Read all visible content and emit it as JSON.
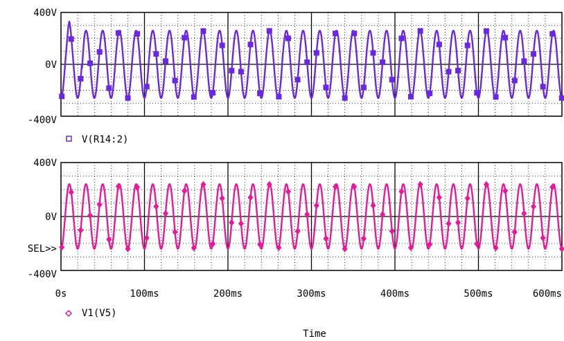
{
  "chart_data": [
    {
      "type": "line",
      "title": "",
      "xlabel": "",
      "ylabel": "",
      "ylim": [
        -400,
        400
      ],
      "xlim": [
        0,
        600
      ],
      "y_ticks": [
        "400V",
        "0V",
        "-400V"
      ],
      "grid": true,
      "series": [
        {
          "name": "V(R14:2)",
          "color": "#6a28e0",
          "marker": "square",
          "waveform": "sine",
          "amplitude": 260,
          "frequency_hz": 50,
          "phase_deg": -90,
          "spikes": [
            [
              10,
              330
            ],
            [
              25,
              200
            ],
            [
              265,
              280
            ]
          ]
        }
      ]
    },
    {
      "type": "line",
      "title": "",
      "xlabel": "Time",
      "ylabel": "",
      "ylim": [
        -400,
        400
      ],
      "xlim": [
        0,
        600
      ],
      "y_ticks": [
        "400V",
        "0V",
        "-400V"
      ],
      "x_ticks": [
        "0s",
        "100ms",
        "200ms",
        "300ms",
        "400ms",
        "500ms",
        "600ms"
      ],
      "grid": true,
      "selector": "SEL>>",
      "series": [
        {
          "name": "V1(V5)",
          "color": "#e8179c",
          "marker": "diamond",
          "waveform": "sine",
          "amplitude": 240,
          "frequency_hz": 50,
          "phase_deg": -90
        }
      ]
    }
  ]
}
